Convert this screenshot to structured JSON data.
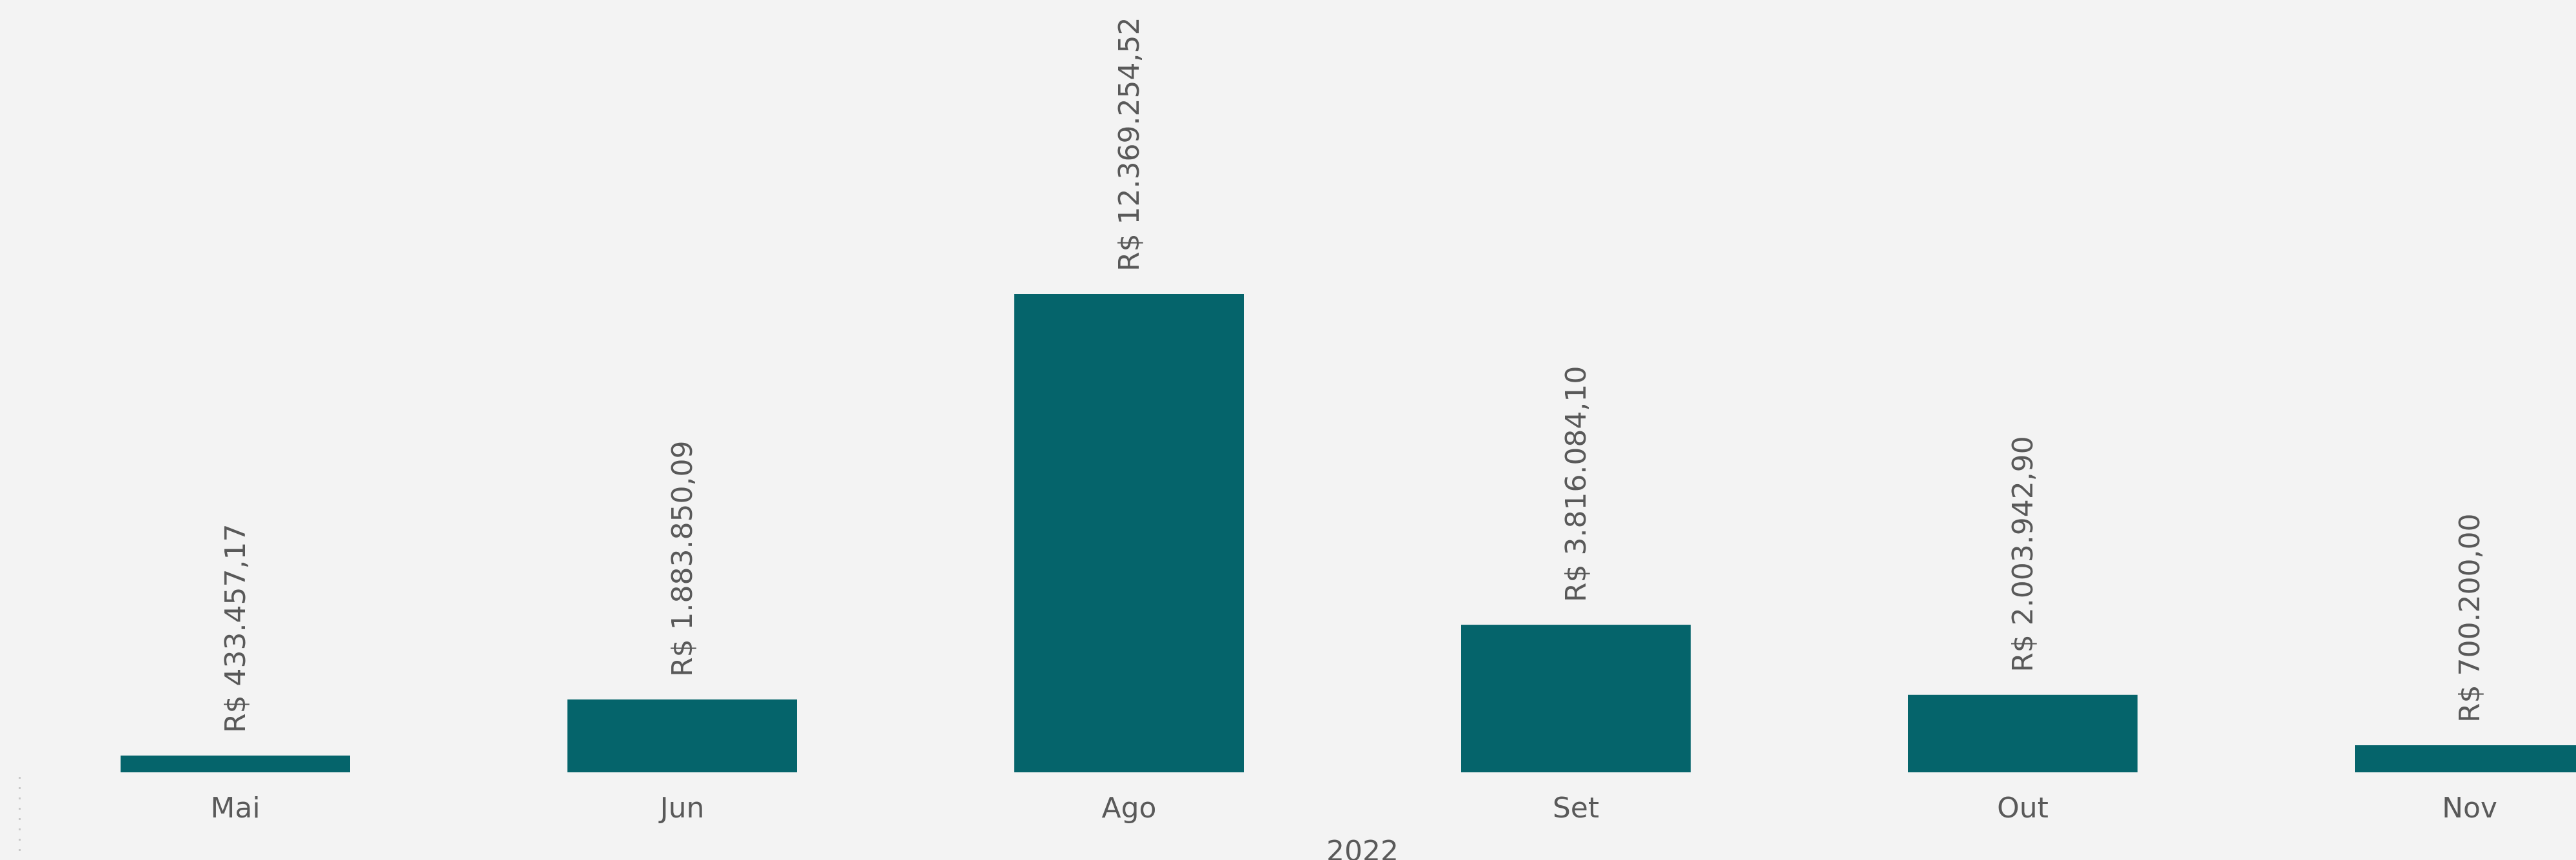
{
  "chart_data": {
    "type": "bar",
    "categories": [
      "Mai",
      "Jun",
      "Ago",
      "Set",
      "Out",
      "Nov"
    ],
    "values": [
      433457.17,
      1883850.09,
      12369254.52,
      3816084.1,
      2003942.9,
      700200.0
    ],
    "value_labels": [
      "R$ 433.457,17",
      "R$ 1.883.850,09",
      "R$ 12.369.254,52",
      "R$ 3.816.084,10",
      "R$ 2.003.942,90",
      "R$ 700.200,00"
    ],
    "group_label": "2022",
    "ylim": [
      0,
      15000000
    ],
    "grid": false,
    "legend": "none",
    "orientation": "vertical",
    "value_label_rotation": "vertical"
  },
  "colors": {
    "bar": "#05646b",
    "background": "#f3f3f3",
    "text": "#595959"
  }
}
